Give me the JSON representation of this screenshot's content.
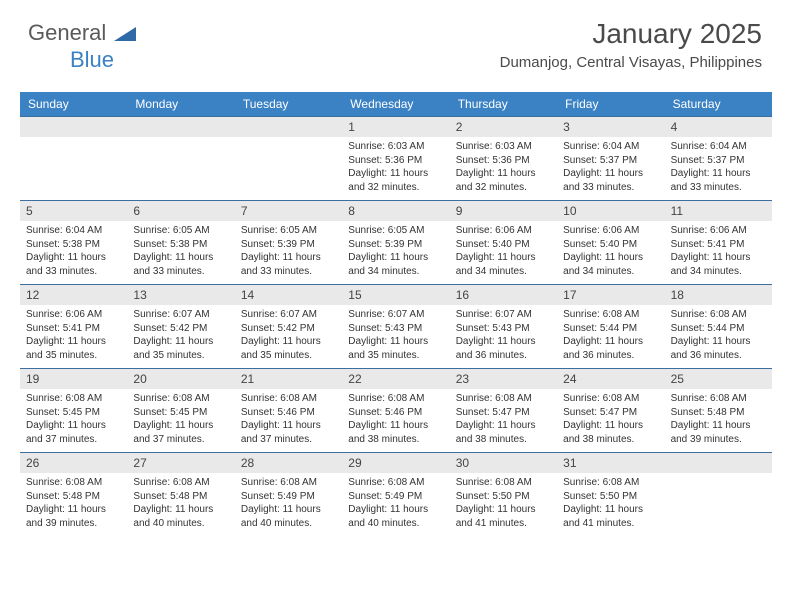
{
  "logo": {
    "text1": "General",
    "text2": "Blue",
    "tri_color": "#2f6aa8"
  },
  "title": "January 2025",
  "location": "Dumanjog, Central Visayas, Philippines",
  "colors": {
    "header_bg": "#3b82c4",
    "header_text": "#ffffff",
    "daynum_bg": "#e9e9e9",
    "week_border": "#3b6fa0",
    "text": "#333333"
  },
  "day_names": [
    "Sunday",
    "Monday",
    "Tuesday",
    "Wednesday",
    "Thursday",
    "Friday",
    "Saturday"
  ],
  "weeks": [
    [
      {
        "empty": true
      },
      {
        "empty": true
      },
      {
        "empty": true
      },
      {
        "day": "1",
        "sunrise": "Sunrise: 6:03 AM",
        "sunset": "Sunset: 5:36 PM",
        "daylight1": "Daylight: 11 hours",
        "daylight2": "and 32 minutes."
      },
      {
        "day": "2",
        "sunrise": "Sunrise: 6:03 AM",
        "sunset": "Sunset: 5:36 PM",
        "daylight1": "Daylight: 11 hours",
        "daylight2": "and 32 minutes."
      },
      {
        "day": "3",
        "sunrise": "Sunrise: 6:04 AM",
        "sunset": "Sunset: 5:37 PM",
        "daylight1": "Daylight: 11 hours",
        "daylight2": "and 33 minutes."
      },
      {
        "day": "4",
        "sunrise": "Sunrise: 6:04 AM",
        "sunset": "Sunset: 5:37 PM",
        "daylight1": "Daylight: 11 hours",
        "daylight2": "and 33 minutes."
      }
    ],
    [
      {
        "day": "5",
        "sunrise": "Sunrise: 6:04 AM",
        "sunset": "Sunset: 5:38 PM",
        "daylight1": "Daylight: 11 hours",
        "daylight2": "and 33 minutes."
      },
      {
        "day": "6",
        "sunrise": "Sunrise: 6:05 AM",
        "sunset": "Sunset: 5:38 PM",
        "daylight1": "Daylight: 11 hours",
        "daylight2": "and 33 minutes."
      },
      {
        "day": "7",
        "sunrise": "Sunrise: 6:05 AM",
        "sunset": "Sunset: 5:39 PM",
        "daylight1": "Daylight: 11 hours",
        "daylight2": "and 33 minutes."
      },
      {
        "day": "8",
        "sunrise": "Sunrise: 6:05 AM",
        "sunset": "Sunset: 5:39 PM",
        "daylight1": "Daylight: 11 hours",
        "daylight2": "and 34 minutes."
      },
      {
        "day": "9",
        "sunrise": "Sunrise: 6:06 AM",
        "sunset": "Sunset: 5:40 PM",
        "daylight1": "Daylight: 11 hours",
        "daylight2": "and 34 minutes."
      },
      {
        "day": "10",
        "sunrise": "Sunrise: 6:06 AM",
        "sunset": "Sunset: 5:40 PM",
        "daylight1": "Daylight: 11 hours",
        "daylight2": "and 34 minutes."
      },
      {
        "day": "11",
        "sunrise": "Sunrise: 6:06 AM",
        "sunset": "Sunset: 5:41 PM",
        "daylight1": "Daylight: 11 hours",
        "daylight2": "and 34 minutes."
      }
    ],
    [
      {
        "day": "12",
        "sunrise": "Sunrise: 6:06 AM",
        "sunset": "Sunset: 5:41 PM",
        "daylight1": "Daylight: 11 hours",
        "daylight2": "and 35 minutes."
      },
      {
        "day": "13",
        "sunrise": "Sunrise: 6:07 AM",
        "sunset": "Sunset: 5:42 PM",
        "daylight1": "Daylight: 11 hours",
        "daylight2": "and 35 minutes."
      },
      {
        "day": "14",
        "sunrise": "Sunrise: 6:07 AM",
        "sunset": "Sunset: 5:42 PM",
        "daylight1": "Daylight: 11 hours",
        "daylight2": "and 35 minutes."
      },
      {
        "day": "15",
        "sunrise": "Sunrise: 6:07 AM",
        "sunset": "Sunset: 5:43 PM",
        "daylight1": "Daylight: 11 hours",
        "daylight2": "and 35 minutes."
      },
      {
        "day": "16",
        "sunrise": "Sunrise: 6:07 AM",
        "sunset": "Sunset: 5:43 PM",
        "daylight1": "Daylight: 11 hours",
        "daylight2": "and 36 minutes."
      },
      {
        "day": "17",
        "sunrise": "Sunrise: 6:08 AM",
        "sunset": "Sunset: 5:44 PM",
        "daylight1": "Daylight: 11 hours",
        "daylight2": "and 36 minutes."
      },
      {
        "day": "18",
        "sunrise": "Sunrise: 6:08 AM",
        "sunset": "Sunset: 5:44 PM",
        "daylight1": "Daylight: 11 hours",
        "daylight2": "and 36 minutes."
      }
    ],
    [
      {
        "day": "19",
        "sunrise": "Sunrise: 6:08 AM",
        "sunset": "Sunset: 5:45 PM",
        "daylight1": "Daylight: 11 hours",
        "daylight2": "and 37 minutes."
      },
      {
        "day": "20",
        "sunrise": "Sunrise: 6:08 AM",
        "sunset": "Sunset: 5:45 PM",
        "daylight1": "Daylight: 11 hours",
        "daylight2": "and 37 minutes."
      },
      {
        "day": "21",
        "sunrise": "Sunrise: 6:08 AM",
        "sunset": "Sunset: 5:46 PM",
        "daylight1": "Daylight: 11 hours",
        "daylight2": "and 37 minutes."
      },
      {
        "day": "22",
        "sunrise": "Sunrise: 6:08 AM",
        "sunset": "Sunset: 5:46 PM",
        "daylight1": "Daylight: 11 hours",
        "daylight2": "and 38 minutes."
      },
      {
        "day": "23",
        "sunrise": "Sunrise: 6:08 AM",
        "sunset": "Sunset: 5:47 PM",
        "daylight1": "Daylight: 11 hours",
        "daylight2": "and 38 minutes."
      },
      {
        "day": "24",
        "sunrise": "Sunrise: 6:08 AM",
        "sunset": "Sunset: 5:47 PM",
        "daylight1": "Daylight: 11 hours",
        "daylight2": "and 38 minutes."
      },
      {
        "day": "25",
        "sunrise": "Sunrise: 6:08 AM",
        "sunset": "Sunset: 5:48 PM",
        "daylight1": "Daylight: 11 hours",
        "daylight2": "and 39 minutes."
      }
    ],
    [
      {
        "day": "26",
        "sunrise": "Sunrise: 6:08 AM",
        "sunset": "Sunset: 5:48 PM",
        "daylight1": "Daylight: 11 hours",
        "daylight2": "and 39 minutes."
      },
      {
        "day": "27",
        "sunrise": "Sunrise: 6:08 AM",
        "sunset": "Sunset: 5:48 PM",
        "daylight1": "Daylight: 11 hours",
        "daylight2": "and 40 minutes."
      },
      {
        "day": "28",
        "sunrise": "Sunrise: 6:08 AM",
        "sunset": "Sunset: 5:49 PM",
        "daylight1": "Daylight: 11 hours",
        "daylight2": "and 40 minutes."
      },
      {
        "day": "29",
        "sunrise": "Sunrise: 6:08 AM",
        "sunset": "Sunset: 5:49 PM",
        "daylight1": "Daylight: 11 hours",
        "daylight2": "and 40 minutes."
      },
      {
        "day": "30",
        "sunrise": "Sunrise: 6:08 AM",
        "sunset": "Sunset: 5:50 PM",
        "daylight1": "Daylight: 11 hours",
        "daylight2": "and 41 minutes."
      },
      {
        "day": "31",
        "sunrise": "Sunrise: 6:08 AM",
        "sunset": "Sunset: 5:50 PM",
        "daylight1": "Daylight: 11 hours",
        "daylight2": "and 41 minutes."
      },
      {
        "empty": true
      }
    ]
  ]
}
